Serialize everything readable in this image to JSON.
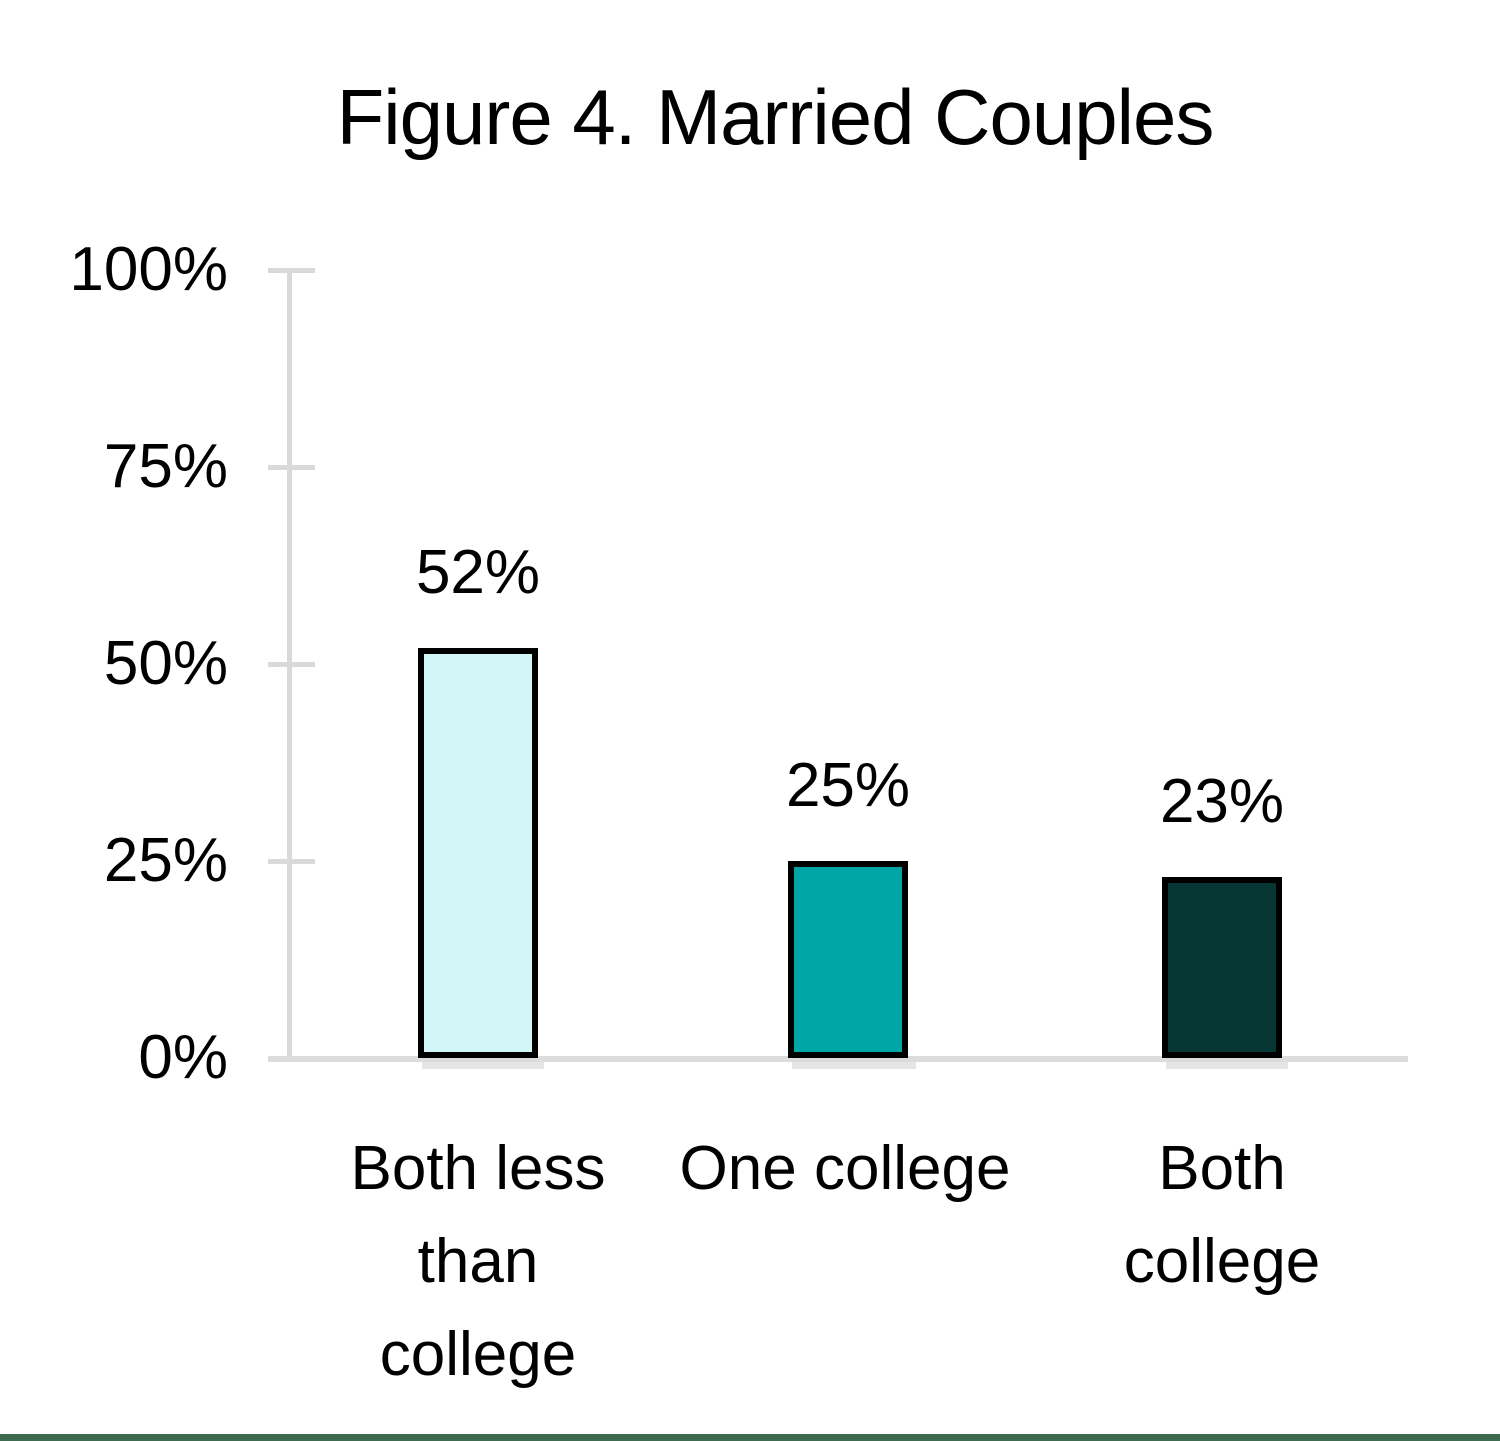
{
  "page": {
    "background": "#ffffff",
    "bottom_divider_color": "#3e6b4f"
  },
  "chart_data": {
    "type": "bar",
    "title": "Figure 4. Married Couples",
    "categories": [
      "Both less than college",
      "One college",
      "Both college"
    ],
    "categories_display": [
      "Both less\nthan\ncollege",
      "One college",
      "Both\ncollege"
    ],
    "values": [
      52,
      25,
      23
    ],
    "value_labels": [
      "52%",
      "25%",
      "23%"
    ],
    "ylim": [
      0,
      100
    ],
    "ytick_labels": [
      "100%",
      "75%",
      "50%",
      "25%",
      "0%"
    ],
    "xlabel": "",
    "ylabel": "",
    "grid": false,
    "legend": false,
    "bar_fill_colors": [
      "#d3f6f7",
      "#00a6a6",
      "#073734"
    ],
    "bar_border_color": "#000000",
    "axis_line_color": "#d9d9d9",
    "text_color": "#000000"
  }
}
